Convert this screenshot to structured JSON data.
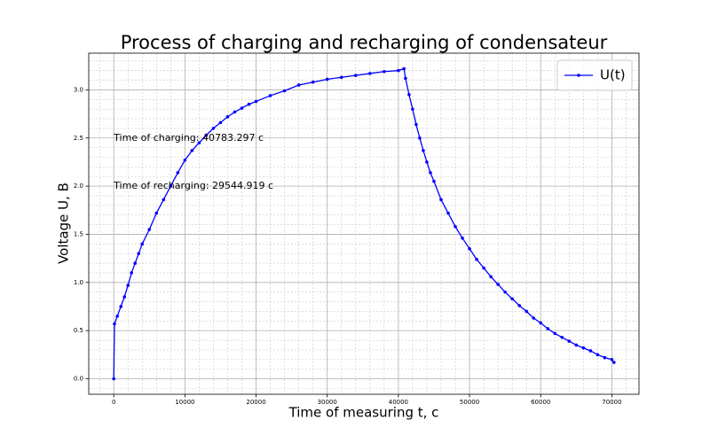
{
  "chart_data": {
    "type": "line",
    "title": "Process of charging and recharging of condensateur",
    "x_label": "Time of measuring t, c",
    "y_label": "Voltage U, B",
    "annotations": [
      "Time of charging: 40783.297 c",
      "Time of recharging: 29544.919 c"
    ],
    "x": [
      0,
      100,
      500,
      1000,
      1500,
      2000,
      2500,
      3000,
      3500,
      4000,
      5000,
      6000,
      7000,
      8000,
      9000,
      10000,
      11000,
      12000,
      13000,
      14000,
      15000,
      16000,
      17000,
      18000,
      19000,
      20000,
      22000,
      24000,
      26000,
      28000,
      30000,
      32000,
      34000,
      36000,
      38000,
      40000,
      40783,
      41000,
      41500,
      42000,
      42500,
      43000,
      43500,
      44000,
      44500,
      45000,
      46000,
      47000,
      48000,
      49000,
      50000,
      51000,
      52000,
      53000,
      54000,
      55000,
      56000,
      57000,
      58000,
      59000,
      60000,
      61000,
      62000,
      63000,
      64000,
      65000,
      66000,
      67000,
      68000,
      69000,
      70000,
      70300
    ],
    "series": [
      {
        "name": "U(t)",
        "color": "#0000ff",
        "values": [
          0,
          0.57,
          0.65,
          0.75,
          0.85,
          0.97,
          1.1,
          1.2,
          1.3,
          1.4,
          1.55,
          1.72,
          1.86,
          2.0,
          2.14,
          2.27,
          2.37,
          2.45,
          2.53,
          2.6,
          2.66,
          2.72,
          2.77,
          2.81,
          2.85,
          2.88,
          2.94,
          2.99,
          3.05,
          3.08,
          3.11,
          3.13,
          3.15,
          3.17,
          3.19,
          3.2,
          3.22,
          3.12,
          2.95,
          2.8,
          2.64,
          2.5,
          2.37,
          2.25,
          2.14,
          2.05,
          1.86,
          1.72,
          1.58,
          1.46,
          1.35,
          1.24,
          1.15,
          1.06,
          0.98,
          0.9,
          0.83,
          0.76,
          0.7,
          0.63,
          0.58,
          0.52,
          0.47,
          0.43,
          0.39,
          0.35,
          0.32,
          0.29,
          0.25,
          0.22,
          0.2,
          0.17
        ]
      }
    ],
    "xlim": [
      -3515,
      73815
    ],
    "ylim": [
      -0.161,
      3.381
    ],
    "xticks": [
      0,
      10000,
      20000,
      30000,
      40000,
      50000,
      60000,
      70000
    ],
    "yticks": [
      {
        "value": 0,
        "label": "0.0"
      },
      {
        "value": 0.5,
        "label": "0.5"
      },
      {
        "value": 1,
        "label": "1.0"
      },
      {
        "value": 1.5,
        "label": "1.5"
      },
      {
        "value": 2,
        "label": "2.0"
      },
      {
        "value": 2.5,
        "label": "2.5"
      },
      {
        "value": 3,
        "label": "3.0"
      }
    ],
    "grid": true,
    "minor_grid": true,
    "legend": "upper right"
  }
}
